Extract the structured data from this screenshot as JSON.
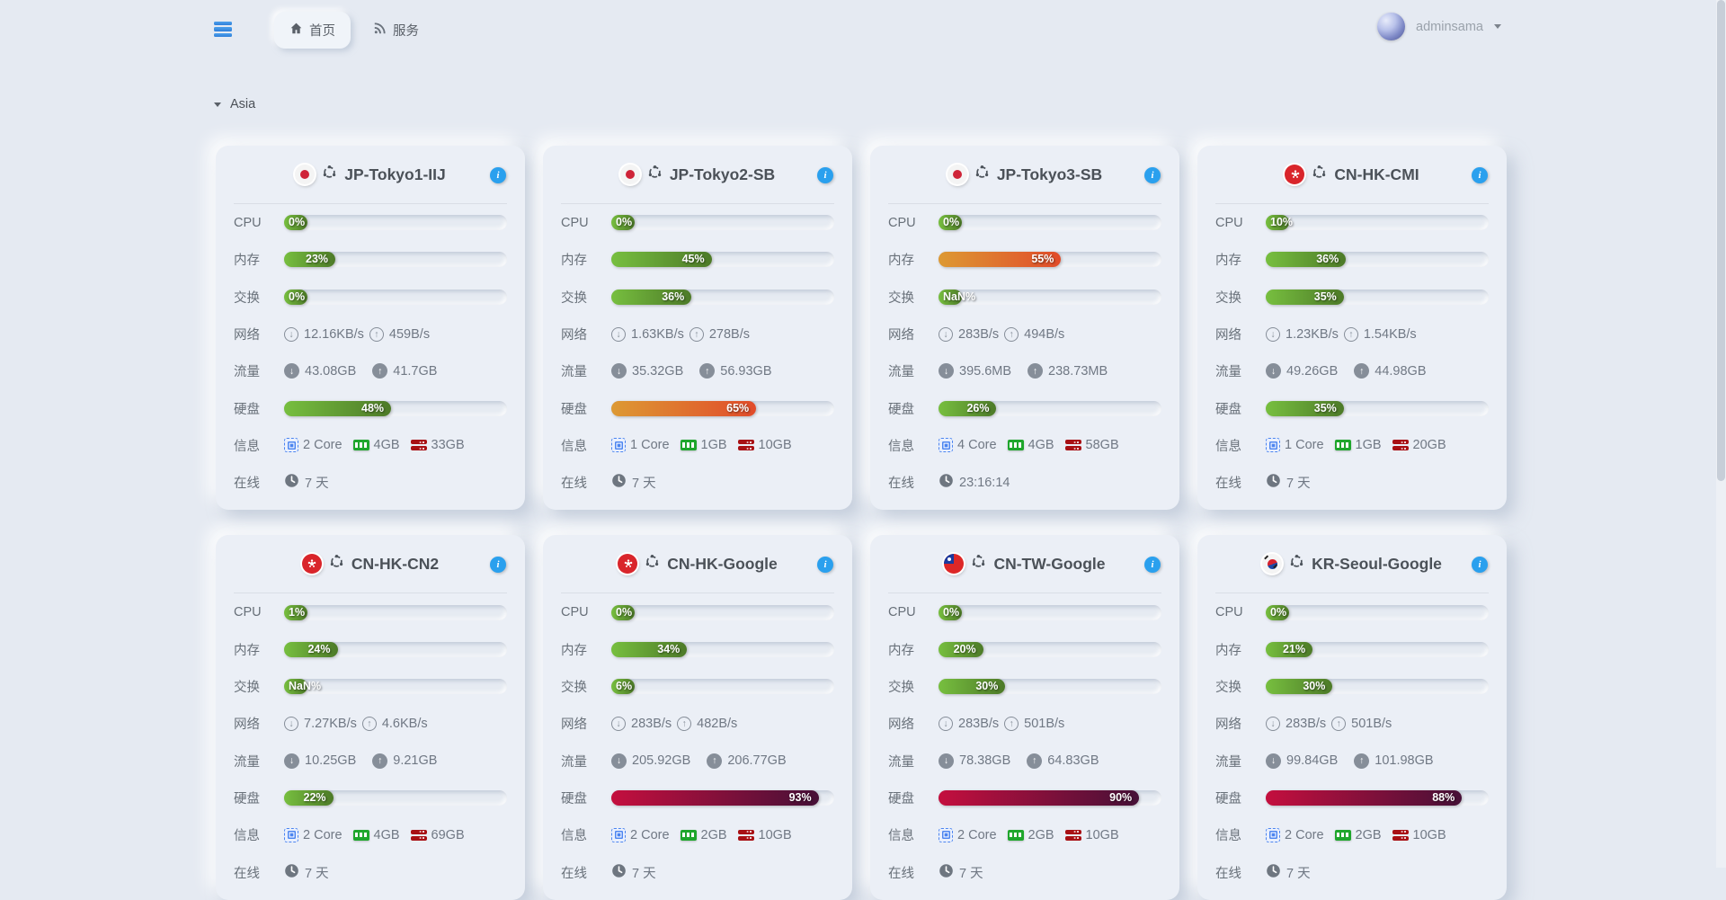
{
  "theme": {
    "accent_blue": "#2aa0ee",
    "bar_green": [
      "#77bf3f",
      "#4d7a28"
    ],
    "bar_orange": [
      "#dd9933",
      "#e14b2a"
    ],
    "bar_red": [
      "#c40f3e",
      "#461037"
    ]
  },
  "navbar": {
    "menu_icon": "server-stack-icon",
    "tabs": [
      {
        "label": "首页",
        "icon": "home"
      },
      {
        "label": "服务",
        "icon": "rss"
      }
    ],
    "active_tab": "首页",
    "user": {
      "name": "adminsama"
    }
  },
  "section": {
    "label": "Asia"
  },
  "row_labels": {
    "cpu": "CPU",
    "memory": "内存",
    "swap": "交换",
    "network": "网络",
    "traffic": "流量",
    "disk": "硬盘",
    "info": "信息",
    "online": "在线"
  },
  "servers": [
    {
      "name": "JP-Tokyo1-IIJ",
      "flag": "jp",
      "cpu": {
        "label": "0%",
        "pct": 0
      },
      "memory": {
        "label": "23%",
        "pct": 23
      },
      "swap": {
        "label": "0%",
        "pct": 0
      },
      "network": {
        "down": "12.16KB/s",
        "up": "459B/s"
      },
      "traffic": {
        "down": "43.08GB",
        "up": "41.7GB"
      },
      "disk": {
        "label": "48%",
        "pct": 48
      },
      "info": {
        "cores": "2 Core",
        "ram": "4GB",
        "storage": "33GB"
      },
      "online": "7 天"
    },
    {
      "name": "JP-Tokyo2-SB",
      "flag": "jp",
      "cpu": {
        "label": "0%",
        "pct": 0
      },
      "memory": {
        "label": "45%",
        "pct": 45
      },
      "swap": {
        "label": "36%",
        "pct": 36
      },
      "network": {
        "down": "1.63KB/s",
        "up": "278B/s"
      },
      "traffic": {
        "down": "35.32GB",
        "up": "56.93GB"
      },
      "disk": {
        "label": "65%",
        "pct": 65
      },
      "info": {
        "cores": "1 Core",
        "ram": "1GB",
        "storage": "10GB"
      },
      "online": "7 天"
    },
    {
      "name": "JP-Tokyo3-SB",
      "flag": "jp",
      "cpu": {
        "label": "0%",
        "pct": 0
      },
      "memory": {
        "label": "55%",
        "pct": 55
      },
      "swap": {
        "label": "NaN%",
        "pct": null
      },
      "network": {
        "down": "283B/s",
        "up": "494B/s"
      },
      "traffic": {
        "down": "395.6MB",
        "up": "238.73MB"
      },
      "disk": {
        "label": "26%",
        "pct": 26
      },
      "info": {
        "cores": "4 Core",
        "ram": "4GB",
        "storage": "58GB"
      },
      "online": "23:16:14"
    },
    {
      "name": "CN-HK-CMI",
      "flag": "hk",
      "cpu": {
        "label": "10%",
        "pct": 10
      },
      "memory": {
        "label": "36%",
        "pct": 36
      },
      "swap": {
        "label": "35%",
        "pct": 35
      },
      "network": {
        "down": "1.23KB/s",
        "up": "1.54KB/s"
      },
      "traffic": {
        "down": "49.26GB",
        "up": "44.98GB"
      },
      "disk": {
        "label": "35%",
        "pct": 35
      },
      "info": {
        "cores": "1 Core",
        "ram": "1GB",
        "storage": "20GB"
      },
      "online": "7 天"
    },
    {
      "name": "CN-HK-CN2",
      "flag": "hk",
      "cpu": {
        "label": "1%",
        "pct": 1
      },
      "memory": {
        "label": "24%",
        "pct": 24
      },
      "swap": {
        "label": "NaN%",
        "pct": null
      },
      "network": {
        "down": "7.27KB/s",
        "up": "4.6KB/s"
      },
      "traffic": {
        "down": "10.25GB",
        "up": "9.21GB"
      },
      "disk": {
        "label": "22%",
        "pct": 22
      },
      "info": {
        "cores": "2 Core",
        "ram": "4GB",
        "storage": "69GB"
      },
      "online": "7 天"
    },
    {
      "name": "CN-HK-Google",
      "flag": "hk",
      "cpu": {
        "label": "0%",
        "pct": 0
      },
      "memory": {
        "label": "34%",
        "pct": 34
      },
      "swap": {
        "label": "6%",
        "pct": 6
      },
      "network": {
        "down": "283B/s",
        "up": "482B/s"
      },
      "traffic": {
        "down": "205.92GB",
        "up": "206.77GB"
      },
      "disk": {
        "label": "93%",
        "pct": 93
      },
      "info": {
        "cores": "2 Core",
        "ram": "2GB",
        "storage": "10GB"
      },
      "online": "7 天"
    },
    {
      "name": "CN-TW-Google",
      "flag": "tw",
      "cpu": {
        "label": "0%",
        "pct": 0
      },
      "memory": {
        "label": "20%",
        "pct": 20
      },
      "swap": {
        "label": "30%",
        "pct": 30
      },
      "network": {
        "down": "283B/s",
        "up": "501B/s"
      },
      "traffic": {
        "down": "78.38GB",
        "up": "64.83GB"
      },
      "disk": {
        "label": "90%",
        "pct": 90
      },
      "info": {
        "cores": "2 Core",
        "ram": "2GB",
        "storage": "10GB"
      },
      "online": "7 天"
    },
    {
      "name": "KR-Seoul-Google",
      "flag": "kr",
      "cpu": {
        "label": "0%",
        "pct": 0
      },
      "memory": {
        "label": "21%",
        "pct": 21
      },
      "swap": {
        "label": "30%",
        "pct": 30
      },
      "network": {
        "down": "283B/s",
        "up": "501B/s"
      },
      "traffic": {
        "down": "99.84GB",
        "up": "101.98GB"
      },
      "disk": {
        "label": "88%",
        "pct": 88
      },
      "info": {
        "cores": "2 Core",
        "ram": "2GB",
        "storage": "10GB"
      },
      "online": "7 天"
    }
  ]
}
